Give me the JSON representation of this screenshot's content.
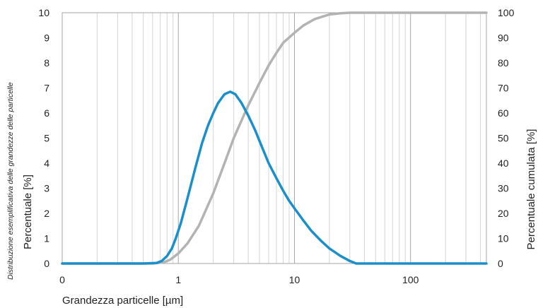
{
  "chart_data": {
    "type": "line",
    "side_note": "Distribuzione esemplificativa delle grandezze delle particelle",
    "xlabel": "Grandezza particelle  [µm]",
    "ylabel_left": "Percentuale [%]",
    "ylabel_right": "Percentuale cumulata [%]",
    "x_scale": "log",
    "x_tick_labels": [
      "0",
      "1",
      "10",
      "100"
    ],
    "xlim": [
      0.1,
      450
    ],
    "ylim_left": [
      0,
      10
    ],
    "ylim_right": [
      0,
      100
    ],
    "y_left_ticks": [
      "0",
      "1",
      "2",
      "3",
      "4",
      "5",
      "6",
      "7",
      "8",
      "9",
      "10"
    ],
    "y_right_ticks": [
      "0",
      "10",
      "20",
      "30",
      "40",
      "50",
      "60",
      "70",
      "80",
      "90",
      "100"
    ],
    "grid": "vertical",
    "series": [
      {
        "axis": "left",
        "color": "#1a8fca",
        "x": [
          0.1,
          0.5,
          0.65,
          0.72,
          0.8,
          0.88,
          0.95,
          1.05,
          1.2,
          1.4,
          1.6,
          1.8,
          2.0,
          2.2,
          2.5,
          2.8,
          3.1,
          3.5,
          4.0,
          4.6,
          5.3,
          6.0,
          7.0,
          8.0,
          9.0,
          10.0,
          12.0,
          14.0,
          17.0,
          20.0,
          25.0,
          30.0,
          34.0,
          50.0,
          100.0,
          200.0,
          450.0
        ],
        "y": [
          0,
          0,
          0.02,
          0.1,
          0.3,
          0.6,
          1.0,
          1.6,
          2.6,
          3.8,
          4.8,
          5.5,
          6.0,
          6.4,
          6.75,
          6.85,
          6.75,
          6.4,
          5.9,
          5.3,
          4.6,
          4.0,
          3.4,
          2.9,
          2.5,
          2.2,
          1.7,
          1.3,
          0.9,
          0.6,
          0.3,
          0.1,
          0,
          0,
          0,
          0,
          0
        ]
      },
      {
        "axis": "right",
        "color": "#b3b3b3",
        "x": [
          0.1,
          0.6,
          0.75,
          0.85,
          1.0,
          1.2,
          1.5,
          2.0,
          2.5,
          3.0,
          3.5,
          4.0,
          5.0,
          6.0,
          7.0,
          8.0,
          10.0,
          12.0,
          15.0,
          20.0,
          25.0,
          30.0,
          40.0,
          100.0,
          450.0
        ],
        "y": [
          0,
          0,
          0.5,
          1.5,
          4,
          8,
          15,
          28,
          40,
          50,
          57,
          63,
          72,
          79,
          84,
          88,
          92,
          95,
          97.5,
          99.3,
          99.8,
          100,
          100,
          100,
          100
        ]
      }
    ]
  }
}
